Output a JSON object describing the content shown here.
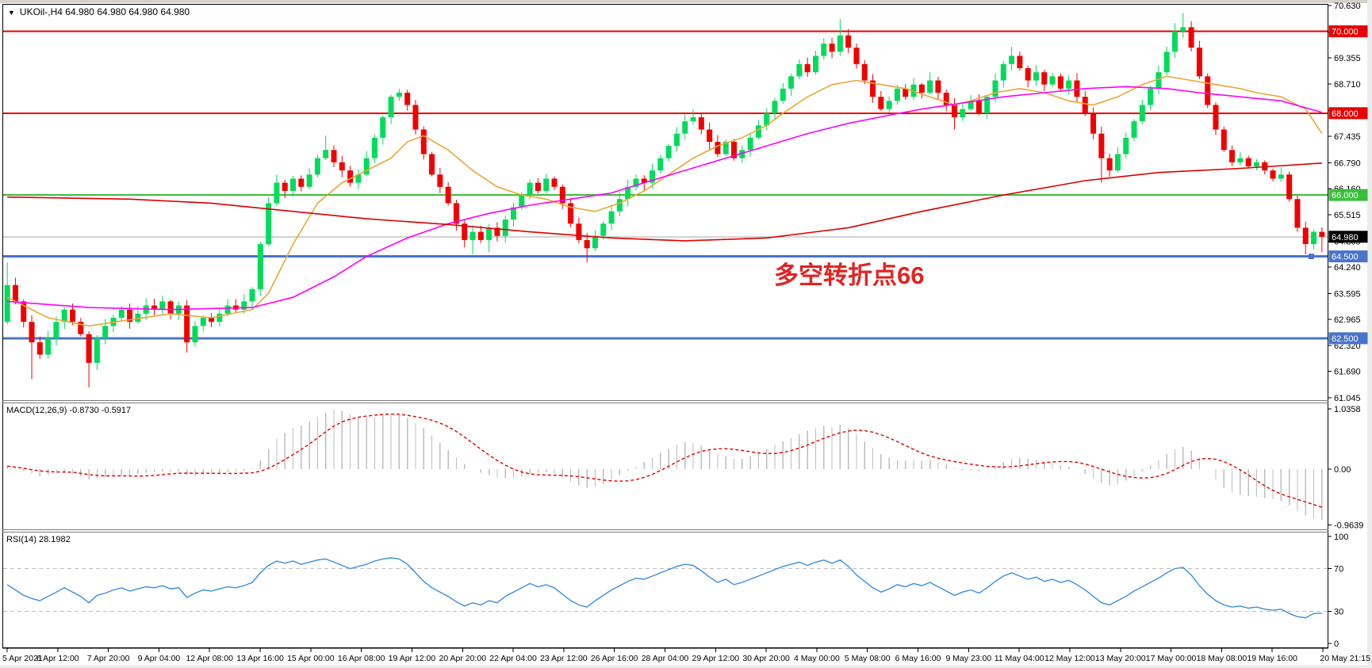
{
  "window": {
    "chrome_color": "#D6D2CA",
    "plot_bg": "#FFFFFF",
    "frame_color": "#000000",
    "separator_color": "#7A7A7A"
  },
  "header": {
    "dropdown_icon": "▼",
    "symbol": "UKOil-,H4",
    "ohlc": "64.980 64.980 64.980 64.980"
  },
  "annotation": {
    "text": "多空转折点66",
    "color": "#E02424"
  },
  "panes": {
    "macd_title": "MACD(12,26,9) -0.8730 -0.5917",
    "rsi_title": "RSI(14) 28.1982"
  },
  "price_axis": {
    "ticks": [
      {
        "label": "70.630",
        "value": 70.63
      },
      {
        "label": "69.985",
        "value": 69.985
      },
      {
        "label": "69.355",
        "value": 69.355
      },
      {
        "label": "68.710",
        "value": 68.71
      },
      {
        "label": "68.065",
        "value": 68.065
      },
      {
        "label": "67.435",
        "value": 67.435
      },
      {
        "label": "66.790",
        "value": 66.79
      },
      {
        "label": "66.160",
        "value": 66.16
      },
      {
        "label": "65.515",
        "value": 65.515
      },
      {
        "label": "64.865",
        "value": 64.865
      },
      {
        "label": "64.240",
        "value": 64.24
      },
      {
        "label": "63.595",
        "value": 63.595
      },
      {
        "label": "62.965",
        "value": 62.965
      },
      {
        "label": "62.320",
        "value": 62.32
      },
      {
        "label": "61.690",
        "value": 61.69
      },
      {
        "label": "61.045",
        "value": 61.045
      }
    ],
    "line_labels": [
      {
        "label": "70.000",
        "value": 70.0,
        "bg": "#E80000",
        "fg": "#FFFFFF"
      },
      {
        "label": "68.000",
        "value": 68.0,
        "bg": "#E80000",
        "fg": "#FFFFFF"
      },
      {
        "label": "66.000",
        "value": 66.0,
        "bg": "#3CBE3C",
        "fg": "#FFFFFF"
      },
      {
        "label": "64.980",
        "value": 64.98,
        "bg": "#000000",
        "fg": "#FFFFFF"
      },
      {
        "label": "64.500",
        "value": 64.5,
        "bg": "#4A74C8",
        "fg": "#FFFFFF"
      },
      {
        "label": "62.500",
        "value": 62.5,
        "bg": "#4A74C8",
        "fg": "#FFFFFF"
      }
    ]
  },
  "time_axis": {
    "labels": [
      "5 Apr 2021",
      "6 Apr 12:00",
      "7 Apr 20:00",
      "9 Apr 04:00",
      "12 Apr 08:00",
      "13 Apr 16:00",
      "15 Apr 00:00",
      "16 Apr 08:00",
      "19 Apr 12:00",
      "20 Apr 20:00",
      "22 Apr 04:00",
      "23 Apr 12:00",
      "26 Apr 16:00",
      "28 Apr 04:00",
      "29 Apr 12:00",
      "30 Apr 20:00",
      "4 May 00:00",
      "5 May 08:00",
      "6 May 16:00",
      "9 May 23:00",
      "11 May 04:00",
      "12 May 12:00",
      "13 May 20:00",
      "17 May 00:00",
      "18 May 08:00",
      "19 May 16:00",
      "20 May 21:15"
    ]
  },
  "chart_data": [
    {
      "type": "candlestick",
      "title": "UKOil-,H4",
      "ylim": [
        61.045,
        70.63
      ],
      "up_color": "#00DB5C",
      "down_color": "#F20000",
      "first_open": 62.9,
      "default_wick": 0.14,
      "closes": [
        63.8,
        63.4,
        62.9,
        62.4,
        62.1,
        62.5,
        62.9,
        63.2,
        62.9,
        62.6,
        61.9,
        62.5,
        62.8,
        63.0,
        63.2,
        62.9,
        63.1,
        63.3,
        63.2,
        63.4,
        63.1,
        63.3,
        62.4,
        62.8,
        63.0,
        62.9,
        63.1,
        63.3,
        63.2,
        63.4,
        63.7,
        64.8,
        65.8,
        66.3,
        66.1,
        66.4,
        66.2,
        66.5,
        66.9,
        67.1,
        66.8,
        66.6,
        66.3,
        66.5,
        66.9,
        67.4,
        67.9,
        68.4,
        68.5,
        68.2,
        67.6,
        67.0,
        66.5,
        66.2,
        65.8,
        65.3,
        64.9,
        65.1,
        64.9,
        65.2,
        65.0,
        65.4,
        65.7,
        66.0,
        66.3,
        66.1,
        66.4,
        66.2,
        65.8,
        65.3,
        64.9,
        64.7,
        65.0,
        65.3,
        65.6,
        65.9,
        66.2,
        66.4,
        66.3,
        66.6,
        66.9,
        67.2,
        67.5,
        67.8,
        67.9,
        67.6,
        67.3,
        67.0,
        67.3,
        66.9,
        67.1,
        67.4,
        67.7,
        68.0,
        68.3,
        68.6,
        68.9,
        69.2,
        69.0,
        69.4,
        69.7,
        69.5,
        69.9,
        69.6,
        69.2,
        68.8,
        68.4,
        68.1,
        68.3,
        68.6,
        68.4,
        68.7,
        68.5,
        68.8,
        68.5,
        68.2,
        67.9,
        68.1,
        68.3,
        68.0,
        68.4,
        68.8,
        69.2,
        69.4,
        69.1,
        68.8,
        69.0,
        68.7,
        68.9,
        68.6,
        68.8,
        68.4,
        68.0,
        67.5,
        66.9,
        66.6,
        67.0,
        67.4,
        67.8,
        68.2,
        68.6,
        69.0,
        69.5,
        70.0,
        70.1,
        69.6,
        68.9,
        68.2,
        67.6,
        67.1,
        66.8,
        66.9,
        66.7,
        66.8,
        66.6,
        66.4,
        66.5,
        65.9,
        65.2,
        64.8,
        65.1,
        64.98
      ],
      "high_overrides": {
        "0": 64.35,
        "33": 66.5,
        "39": 67.45,
        "47": 68.45,
        "48": 68.6,
        "84": 68.1,
        "102": 70.3,
        "113": 69.0,
        "123": 69.62,
        "143": 70.2,
        "144": 70.45
      },
      "low_overrides": {
        "3": 61.5,
        "10": 61.3,
        "22": 62.15,
        "57": 64.55,
        "59": 64.6,
        "71": 64.35,
        "116": 67.6,
        "134": 66.3,
        "159": 64.55,
        "161": 64.6
      },
      "hlines": [
        {
          "name": "hline-70000",
          "value": 70.0,
          "color": "#E80000",
          "width": 2
        },
        {
          "name": "hline-68000",
          "value": 68.0,
          "color": "#E80000",
          "width": 2
        },
        {
          "name": "hline-66000",
          "value": 66.0,
          "color": "#3CBE3C",
          "width": 2
        },
        {
          "name": "hline-64500",
          "value": 64.5,
          "color": "#4A74C8",
          "width": 3,
          "handle": true
        },
        {
          "name": "hline-62500",
          "value": 62.5,
          "color": "#4A74C8",
          "width": 3
        }
      ],
      "current_price": {
        "value": 64.98,
        "color": "#A8A8A8"
      },
      "moving_averages": [
        {
          "name": "ma-fast-orange",
          "color": "#E8A838",
          "width": 1.6,
          "points": [
            [
              0,
              63.5
            ],
            [
              5,
              63.0
            ],
            [
              10,
              62.8
            ],
            [
              15,
              62.95
            ],
            [
              20,
              63.1
            ],
            [
              25,
              63.0
            ],
            [
              30,
              63.2
            ],
            [
              32,
              63.6
            ],
            [
              35,
              64.8
            ],
            [
              38,
              65.8
            ],
            [
              41,
              66.3
            ],
            [
              44,
              66.6
            ],
            [
              47,
              66.9
            ],
            [
              49,
              67.3
            ],
            [
              51,
              67.45
            ],
            [
              54,
              67.1
            ],
            [
              57,
              66.6
            ],
            [
              60,
              66.2
            ],
            [
              63,
              66.0
            ],
            [
              66,
              65.9
            ],
            [
              69,
              65.7
            ],
            [
              72,
              65.6
            ],
            [
              75,
              65.8
            ],
            [
              78,
              66.1
            ],
            [
              81,
              66.5
            ],
            [
              84,
              66.9
            ],
            [
              87,
              67.2
            ],
            [
              90,
              67.4
            ],
            [
              93,
              67.7
            ],
            [
              95,
              68.0
            ],
            [
              98,
              68.4
            ],
            [
              101,
              68.7
            ],
            [
              104,
              68.8
            ],
            [
              107,
              68.7
            ],
            [
              110,
              68.6
            ],
            [
              113,
              68.4
            ],
            [
              116,
              68.2
            ],
            [
              118,
              68.3
            ],
            [
              121,
              68.5
            ],
            [
              124,
              68.6
            ],
            [
              127,
              68.5
            ],
            [
              130,
              68.3
            ],
            [
              133,
              68.2
            ],
            [
              136,
              68.4
            ],
            [
              139,
              68.7
            ],
            [
              142,
              68.9
            ],
            [
              145,
              68.8
            ],
            [
              148,
              68.7
            ],
            [
              151,
              68.6
            ],
            [
              153,
              68.5
            ],
            [
              156,
              68.4
            ],
            [
              159,
              68.1
            ],
            [
              161,
              67.5
            ]
          ]
        },
        {
          "name": "ma-mid-magenta",
          "color": "#FF00FF",
          "width": 1.6,
          "points": [
            [
              0,
              63.4
            ],
            [
              10,
              63.25
            ],
            [
              20,
              63.2
            ],
            [
              30,
              63.25
            ],
            [
              35,
              63.5
            ],
            [
              40,
              64.0
            ],
            [
              44,
              64.5
            ],
            [
              49,
              64.95
            ],
            [
              54,
              65.3
            ],
            [
              59,
              65.55
            ],
            [
              64,
              65.75
            ],
            [
              69,
              65.9
            ],
            [
              74,
              66.05
            ],
            [
              78,
              66.3
            ],
            [
              83,
              66.6
            ],
            [
              88,
              66.9
            ],
            [
              93,
              67.2
            ],
            [
              98,
              67.5
            ],
            [
              103,
              67.75
            ],
            [
              108,
              67.95
            ],
            [
              112,
              68.1
            ],
            [
              117,
              68.25
            ],
            [
              122,
              68.4
            ],
            [
              127,
              68.5
            ],
            [
              132,
              68.6
            ],
            [
              137,
              68.65
            ],
            [
              142,
              68.6
            ],
            [
              146,
              68.5
            ],
            [
              151,
              68.4
            ],
            [
              156,
              68.3
            ],
            [
              161,
              68.02
            ]
          ]
        },
        {
          "name": "ma-slow-red",
          "color": "#DD0000",
          "width": 1.6,
          "points": [
            [
              0,
              65.95
            ],
            [
              15,
              65.9
            ],
            [
              25,
              65.8
            ],
            [
              35,
              65.6
            ],
            [
              44,
              65.42
            ],
            [
              54,
              65.28
            ],
            [
              64,
              65.1
            ],
            [
              74,
              64.95
            ],
            [
              83,
              64.88
            ],
            [
              93,
              64.95
            ],
            [
              103,
              65.2
            ],
            [
              112,
              65.6
            ],
            [
              122,
              66.0
            ],
            [
              132,
              66.35
            ],
            [
              141,
              66.55
            ],
            [
              151,
              66.65
            ],
            [
              161,
              66.78
            ]
          ]
        }
      ]
    },
    {
      "type": "bar",
      "name": "MACD",
      "params": "12,26,9",
      "current_main": -0.873,
      "current_signal": -0.5917,
      "bar_color": "#BDBDBD",
      "signal_color": "#E00000",
      "signal_period": 9,
      "ticks": [
        {
          "label": "1.0358",
          "value": 1.0358
        },
        {
          "label": "0.00",
          "value": 0
        },
        {
          "label": "-0.9639",
          "value": -0.9639
        }
      ],
      "values": [
        0.05,
        0.02,
        -0.03,
        -0.08,
        -0.12,
        -0.1,
        -0.08,
        -0.06,
        -0.08,
        -0.12,
        -0.18,
        -0.16,
        -0.14,
        -0.12,
        -0.1,
        -0.1,
        -0.08,
        -0.06,
        -0.05,
        -0.04,
        -0.05,
        -0.04,
        -0.1,
        -0.12,
        -0.1,
        -0.09,
        -0.07,
        -0.05,
        -0.04,
        -0.03,
        0.02,
        0.15,
        0.35,
        0.52,
        0.62,
        0.7,
        0.75,
        0.82,
        0.9,
        0.97,
        1.03,
        1.0,
        0.95,
        0.9,
        0.88,
        0.9,
        0.93,
        0.95,
        0.93,
        0.88,
        0.8,
        0.7,
        0.58,
        0.45,
        0.33,
        0.2,
        0.08,
        0.0,
        -0.06,
        -0.1,
        -0.14,
        -0.16,
        -0.15,
        -0.12,
        -0.08,
        -0.06,
        -0.05,
        -0.08,
        -0.14,
        -0.22,
        -0.28,
        -0.32,
        -0.3,
        -0.25,
        -0.18,
        -0.1,
        -0.03,
        0.05,
        0.12,
        0.2,
        0.28,
        0.35,
        0.42,
        0.46,
        0.45,
        0.4,
        0.32,
        0.25,
        0.22,
        0.18,
        0.18,
        0.22,
        0.28,
        0.35,
        0.42,
        0.48,
        0.54,
        0.6,
        0.66,
        0.7,
        0.74,
        0.72,
        0.76,
        0.7,
        0.6,
        0.48,
        0.36,
        0.26,
        0.2,
        0.16,
        0.14,
        0.15,
        0.14,
        0.15,
        0.12,
        0.08,
        0.02,
        -0.02,
        -0.02,
        -0.04,
        0.0,
        0.06,
        0.12,
        0.18,
        0.2,
        0.18,
        0.16,
        0.12,
        0.1,
        0.06,
        0.04,
        0.0,
        -0.08,
        -0.16,
        -0.24,
        -0.28,
        -0.26,
        -0.2,
        -0.12,
        -0.04,
        0.06,
        0.16,
        0.26,
        0.34,
        0.38,
        0.32,
        0.18,
        0.0,
        -0.18,
        -0.32,
        -0.4,
        -0.44,
        -0.46,
        -0.48,
        -0.5,
        -0.52,
        -0.55,
        -0.62,
        -0.72,
        -0.8,
        -0.85,
        -0.873
      ]
    },
    {
      "type": "line",
      "name": "RSI",
      "period": 14,
      "current": 28.1982,
      "line_color": "#3E8EDE",
      "level_color": "#BFBFBF",
      "levels": [
        70,
        30
      ],
      "ticks": [
        {
          "label": "100",
          "value": 100
        },
        {
          "label": "70",
          "value": 70
        },
        {
          "label": "30",
          "value": 30
        },
        {
          "label": "0",
          "value": 0
        }
      ],
      "values": [
        55,
        50,
        45,
        42,
        40,
        44,
        48,
        52,
        48,
        44,
        38,
        45,
        47,
        50,
        52,
        49,
        51,
        53,
        52,
        54,
        51,
        52,
        43,
        47,
        50,
        49,
        51,
        53,
        52,
        54,
        57,
        66,
        73,
        77,
        75,
        77,
        74,
        76,
        78,
        79,
        76,
        73,
        70,
        72,
        74,
        77,
        79,
        80,
        79,
        74,
        66,
        58,
        52,
        48,
        44,
        39,
        35,
        38,
        36,
        40,
        38,
        44,
        48,
        52,
        56,
        53,
        55,
        52,
        46,
        40,
        36,
        34,
        40,
        45,
        50,
        54,
        58,
        61,
        60,
        63,
        66,
        69,
        72,
        74,
        73,
        68,
        62,
        57,
        60,
        55,
        57,
        60,
        63,
        66,
        69,
        72,
        74,
        76,
        73,
        76,
        78,
        75,
        78,
        72,
        64,
        58,
        52,
        48,
        51,
        55,
        53,
        56,
        54,
        57,
        53,
        49,
        45,
        48,
        50,
        47,
        52,
        58,
        63,
        66,
        63,
        60,
        62,
        58,
        60,
        57,
        59,
        55,
        50,
        44,
        38,
        36,
        40,
        44,
        49,
        53,
        57,
        61,
        66,
        70,
        71,
        64,
        54,
        46,
        40,
        36,
        34,
        35,
        33,
        34,
        32,
        31,
        32,
        28,
        25,
        24,
        28,
        28.2
      ]
    }
  ]
}
